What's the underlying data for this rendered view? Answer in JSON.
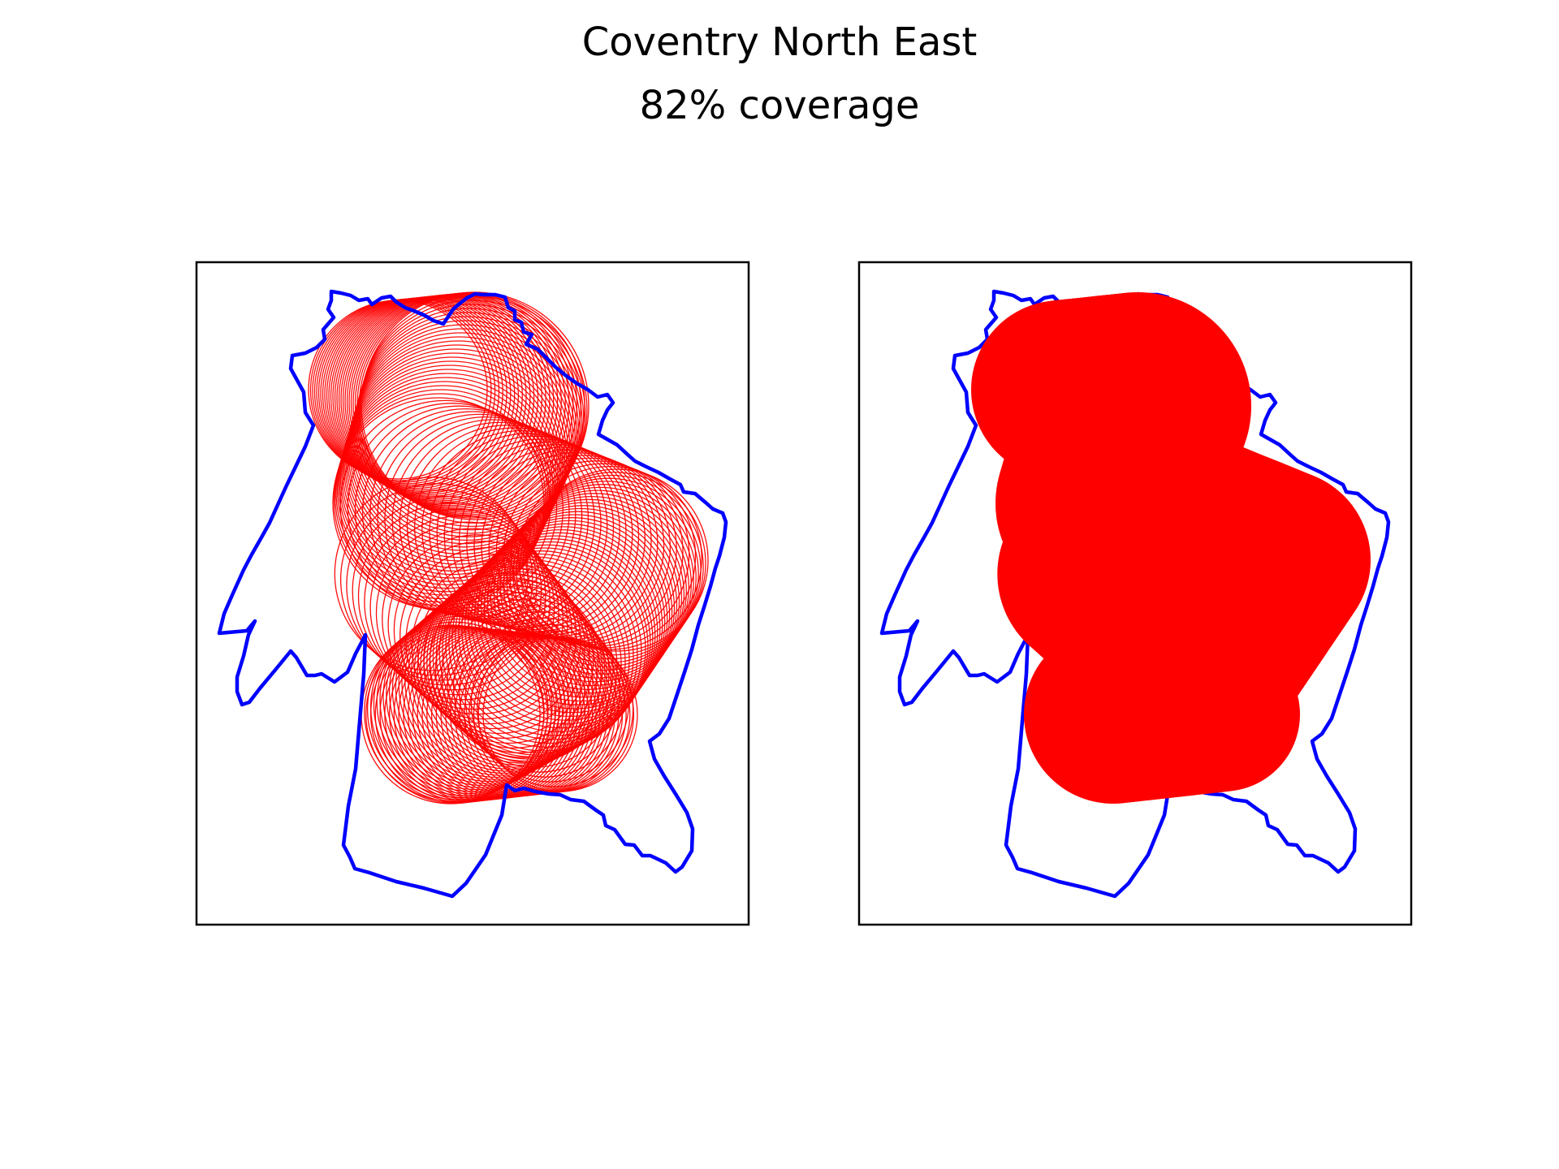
{
  "figure": {
    "title": "Coventry North East",
    "subtitle": "82% coverage"
  },
  "colors": {
    "boundary": "#0000ff",
    "coverage": "#ff0000",
    "frame": "#000000",
    "background": "#ffffff"
  },
  "panels": [
    {
      "name": "circle-outline-panel",
      "style": "outline"
    },
    {
      "name": "coverage-filled-panel",
      "style": "filled"
    }
  ]
}
